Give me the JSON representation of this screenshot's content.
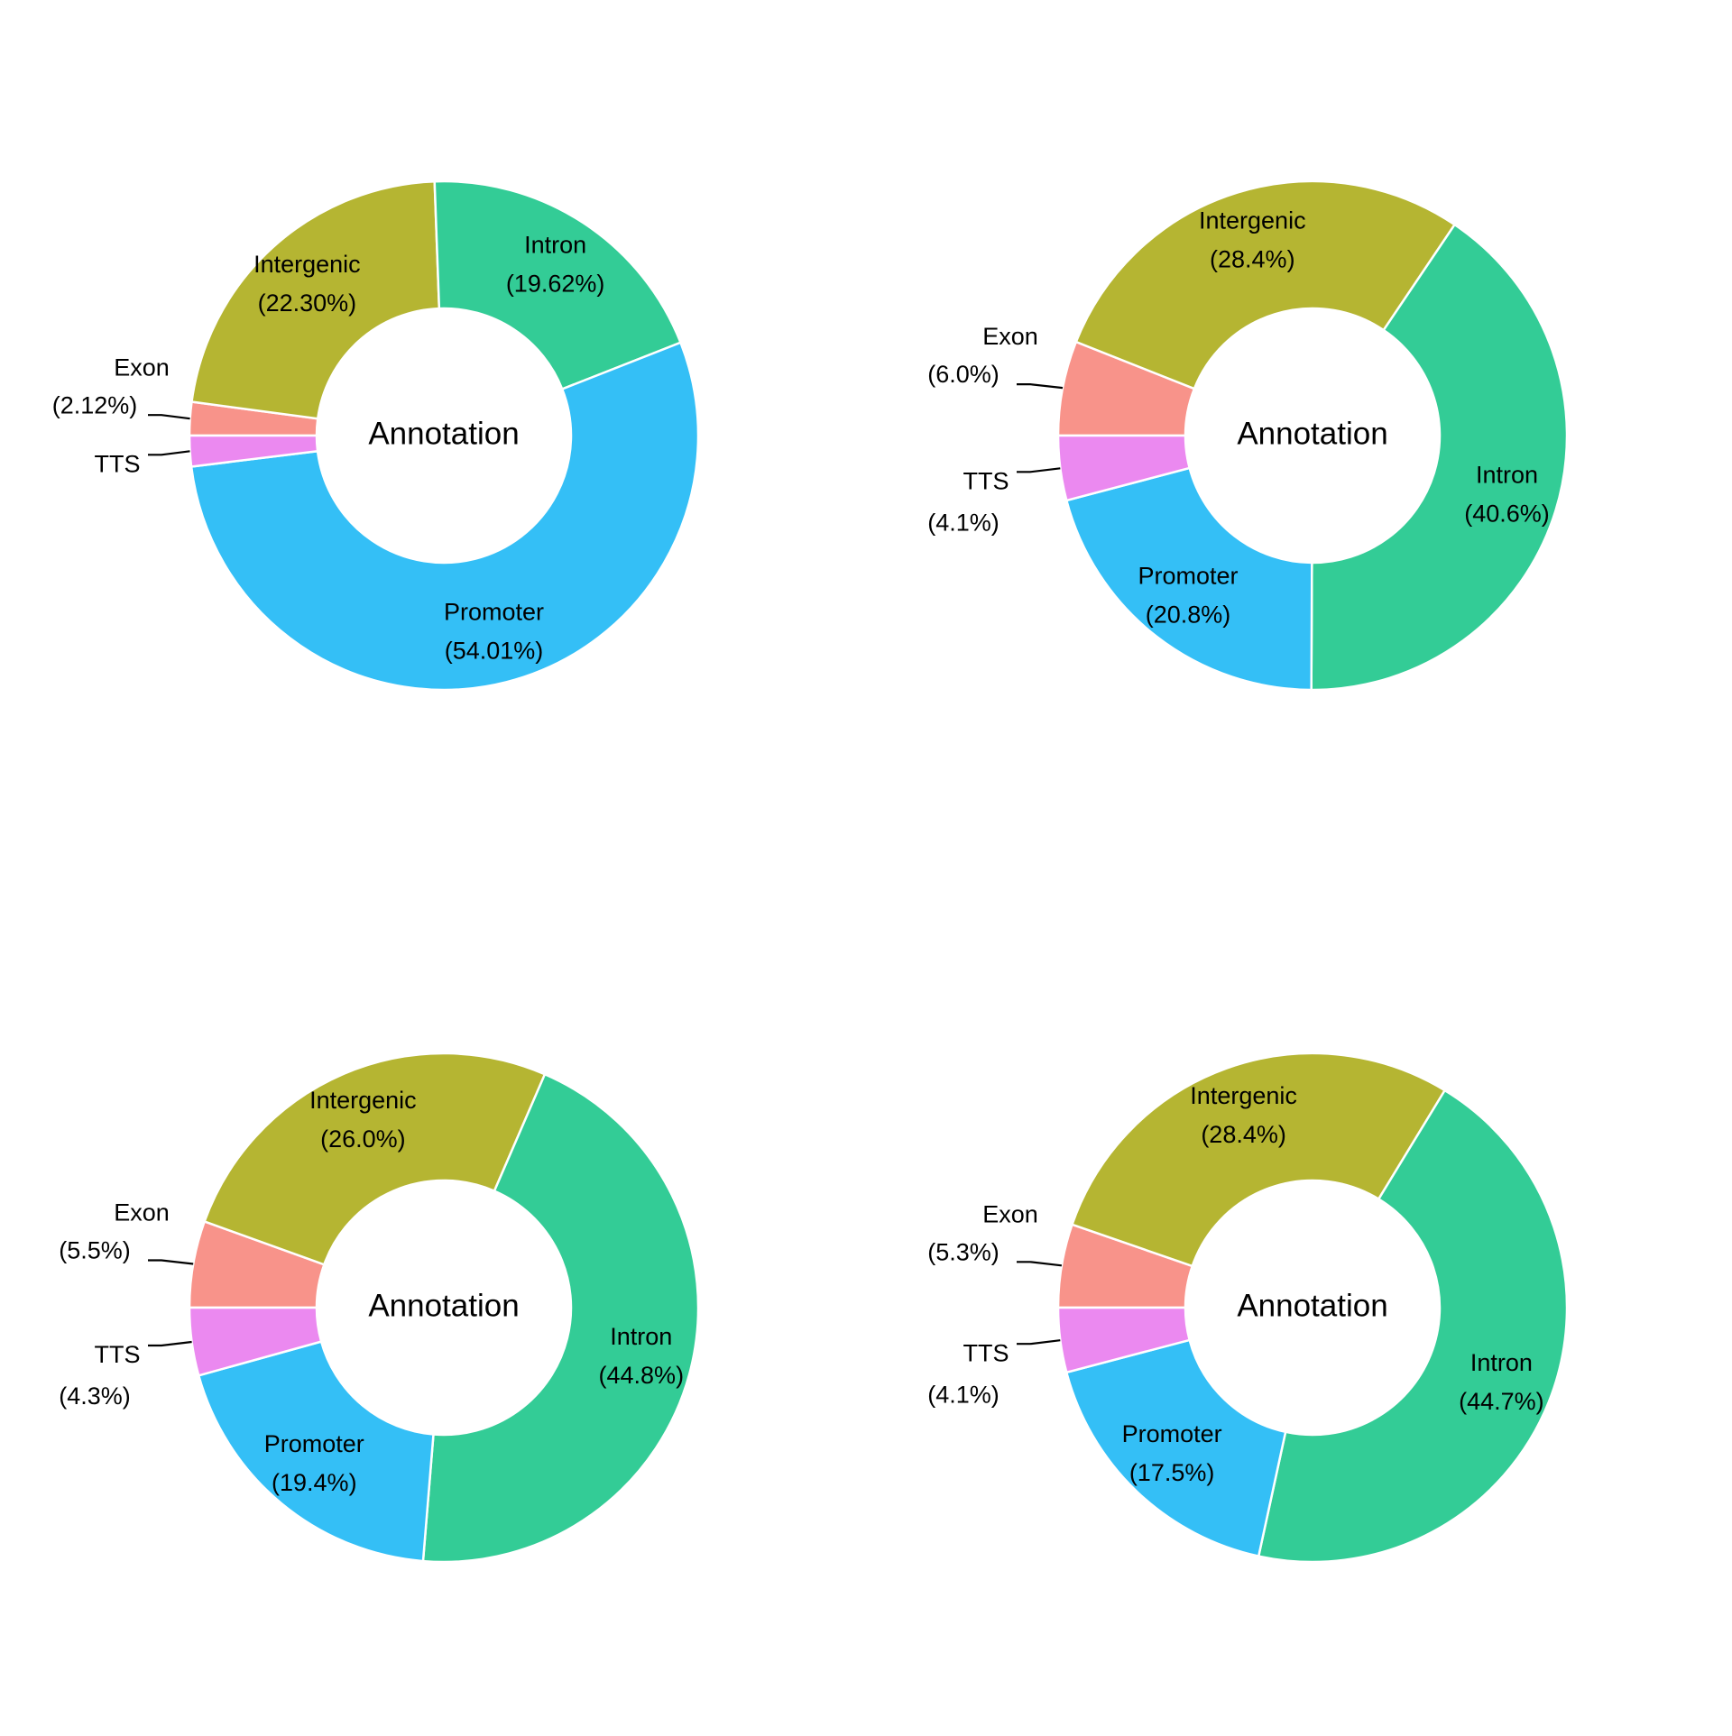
{
  "colors": {
    "Exon": "#F8938A",
    "Intergenic": "#B5B532",
    "Intron": "#33CC96",
    "Promoter": "#34BFF6",
    "TTS": "#EB89F0"
  },
  "chart_data": [
    {
      "type": "pie",
      "donut": true,
      "center_label": "Annotation",
      "slices": [
        {
          "category": "Exon",
          "value": 2.12,
          "label": "(2.12%)"
        },
        {
          "category": "Intergenic",
          "value": 22.3,
          "label": "(22.30%)"
        },
        {
          "category": "Intron",
          "value": 19.62,
          "label": "(19.62%)"
        },
        {
          "category": "Promoter",
          "value": 54.01,
          "label": "(54.01%)"
        },
        {
          "category": "TTS",
          "value": 1.95,
          "label": ""
        }
      ]
    },
    {
      "type": "pie",
      "donut": true,
      "center_label": "Annotation",
      "slices": [
        {
          "category": "Exon",
          "value": 6.0,
          "label": "(6.0%)"
        },
        {
          "category": "Intergenic",
          "value": 28.4,
          "label": "(28.4%)"
        },
        {
          "category": "Intron",
          "value": 40.6,
          "label": "(40.6%)"
        },
        {
          "category": "Promoter",
          "value": 20.8,
          "label": "(20.8%)"
        },
        {
          "category": "TTS",
          "value": 4.1,
          "label": "(4.1%)"
        }
      ]
    },
    {
      "type": "pie",
      "donut": true,
      "center_label": "Annotation",
      "slices": [
        {
          "category": "Exon",
          "value": 5.5,
          "label": "(5.5%)"
        },
        {
          "category": "Intergenic",
          "value": 26.0,
          "label": "(26.0%)"
        },
        {
          "category": "Intron",
          "value": 44.8,
          "label": "(44.8%)"
        },
        {
          "category": "Promoter",
          "value": 19.4,
          "label": "(19.4%)"
        },
        {
          "category": "TTS",
          "value": 4.3,
          "label": "(4.3%)"
        }
      ]
    },
    {
      "type": "pie",
      "donut": true,
      "center_label": "Annotation",
      "slices": [
        {
          "category": "Exon",
          "value": 5.3,
          "label": "(5.3%)"
        },
        {
          "category": "Intergenic",
          "value": 28.4,
          "label": "(28.4%)"
        },
        {
          "category": "Intron",
          "value": 44.7,
          "label": "(44.7%)"
        },
        {
          "category": "Promoter",
          "value": 17.5,
          "label": "(17.5%)"
        },
        {
          "category": "TTS",
          "value": 4.1,
          "label": "(4.1%)"
        }
      ]
    }
  ]
}
